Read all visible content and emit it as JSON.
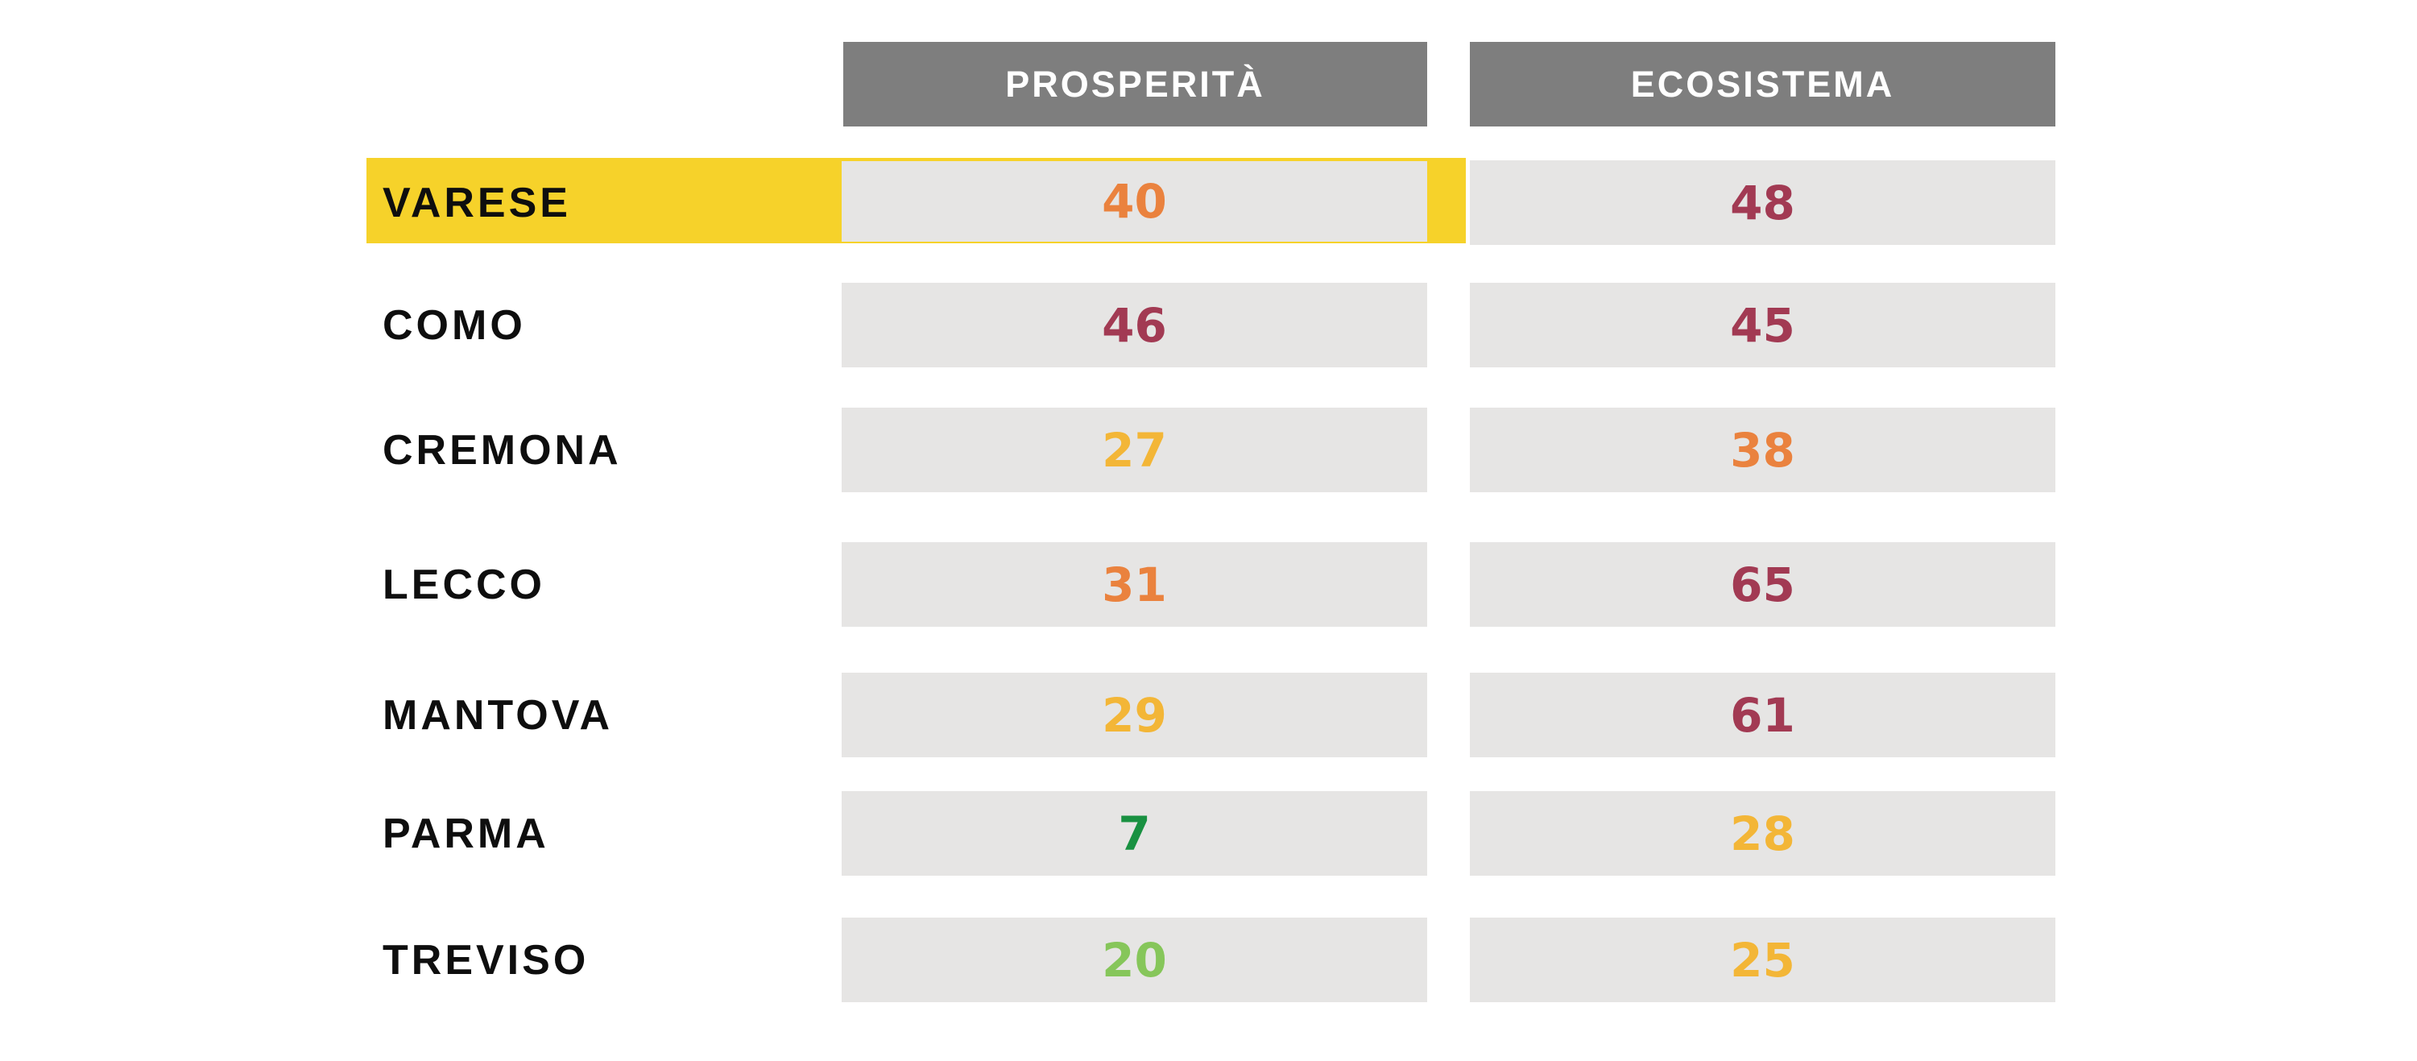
{
  "colors": {
    "background": "#FFFFFF",
    "header-bg": "#7E7E7E",
    "header-text": "#FFFFFF",
    "cell-bg": "#E6E5E4",
    "label-text": "#0E0E0E",
    "highlight": "#F6D22A",
    "scale-green-dark": "#199141",
    "scale-green-light": "#86C65A",
    "scale-amber": "#F3B637",
    "scale-orange": "#EA823E",
    "scale-maroon": "#A23A53"
  },
  "header": {
    "columns": [
      "PROSPERITÀ",
      "ECOSISTEMA"
    ]
  },
  "rows": [
    {
      "label": "VARESE",
      "highlighted": true,
      "values": [
        {
          "text": "40",
          "color": "#EA823E"
        },
        {
          "text": "48",
          "color": "#A23A53"
        }
      ]
    },
    {
      "label": "COMO",
      "highlighted": false,
      "values": [
        {
          "text": "46",
          "color": "#A23A53"
        },
        {
          "text": "45",
          "color": "#A23A53"
        }
      ]
    },
    {
      "label": "CREMONA",
      "highlighted": false,
      "values": [
        {
          "text": "27",
          "color": "#F3B637"
        },
        {
          "text": "38",
          "color": "#EA823E"
        }
      ]
    },
    {
      "label": "LECCO",
      "highlighted": false,
      "values": [
        {
          "text": "31",
          "color": "#EA823E"
        },
        {
          "text": "65",
          "color": "#A23A53"
        }
      ]
    },
    {
      "label": "MANTOVA",
      "highlighted": false,
      "values": [
        {
          "text": "29",
          "color": "#F3B637"
        },
        {
          "text": "61",
          "color": "#A23A53"
        }
      ]
    },
    {
      "label": "PARMA",
      "highlighted": false,
      "values": [
        {
          "text": "7",
          "color": "#199141"
        },
        {
          "text": "28",
          "color": "#F3B637"
        }
      ]
    },
    {
      "label": "TREVISO",
      "highlighted": false,
      "values": [
        {
          "text": "20",
          "color": "#86C65A"
        },
        {
          "text": "25",
          "color": "#F3B637"
        }
      ]
    }
  ],
  "chart_data": {
    "type": "table",
    "title": "",
    "categories": [
      "VARESE",
      "COMO",
      "CREMONA",
      "LECCO",
      "MANTOVA",
      "PARMA",
      "TREVISO"
    ],
    "series": [
      {
        "name": "PROSPERITÀ",
        "values": [
          40,
          46,
          27,
          31,
          29,
          7,
          20
        ]
      },
      {
        "name": "ECOSISTEMA",
        "values": [
          48,
          45,
          38,
          65,
          61,
          28,
          25
        ]
      }
    ],
    "highlighted_row": "VARESE",
    "value_color_scale": {
      "dark_green_low": "#199141",
      "light_green": "#86C65A",
      "amber": "#F3B637",
      "orange": "#EA823E",
      "maroon_high": "#A23A53"
    },
    "legend_position": "none",
    "grid": false
  }
}
